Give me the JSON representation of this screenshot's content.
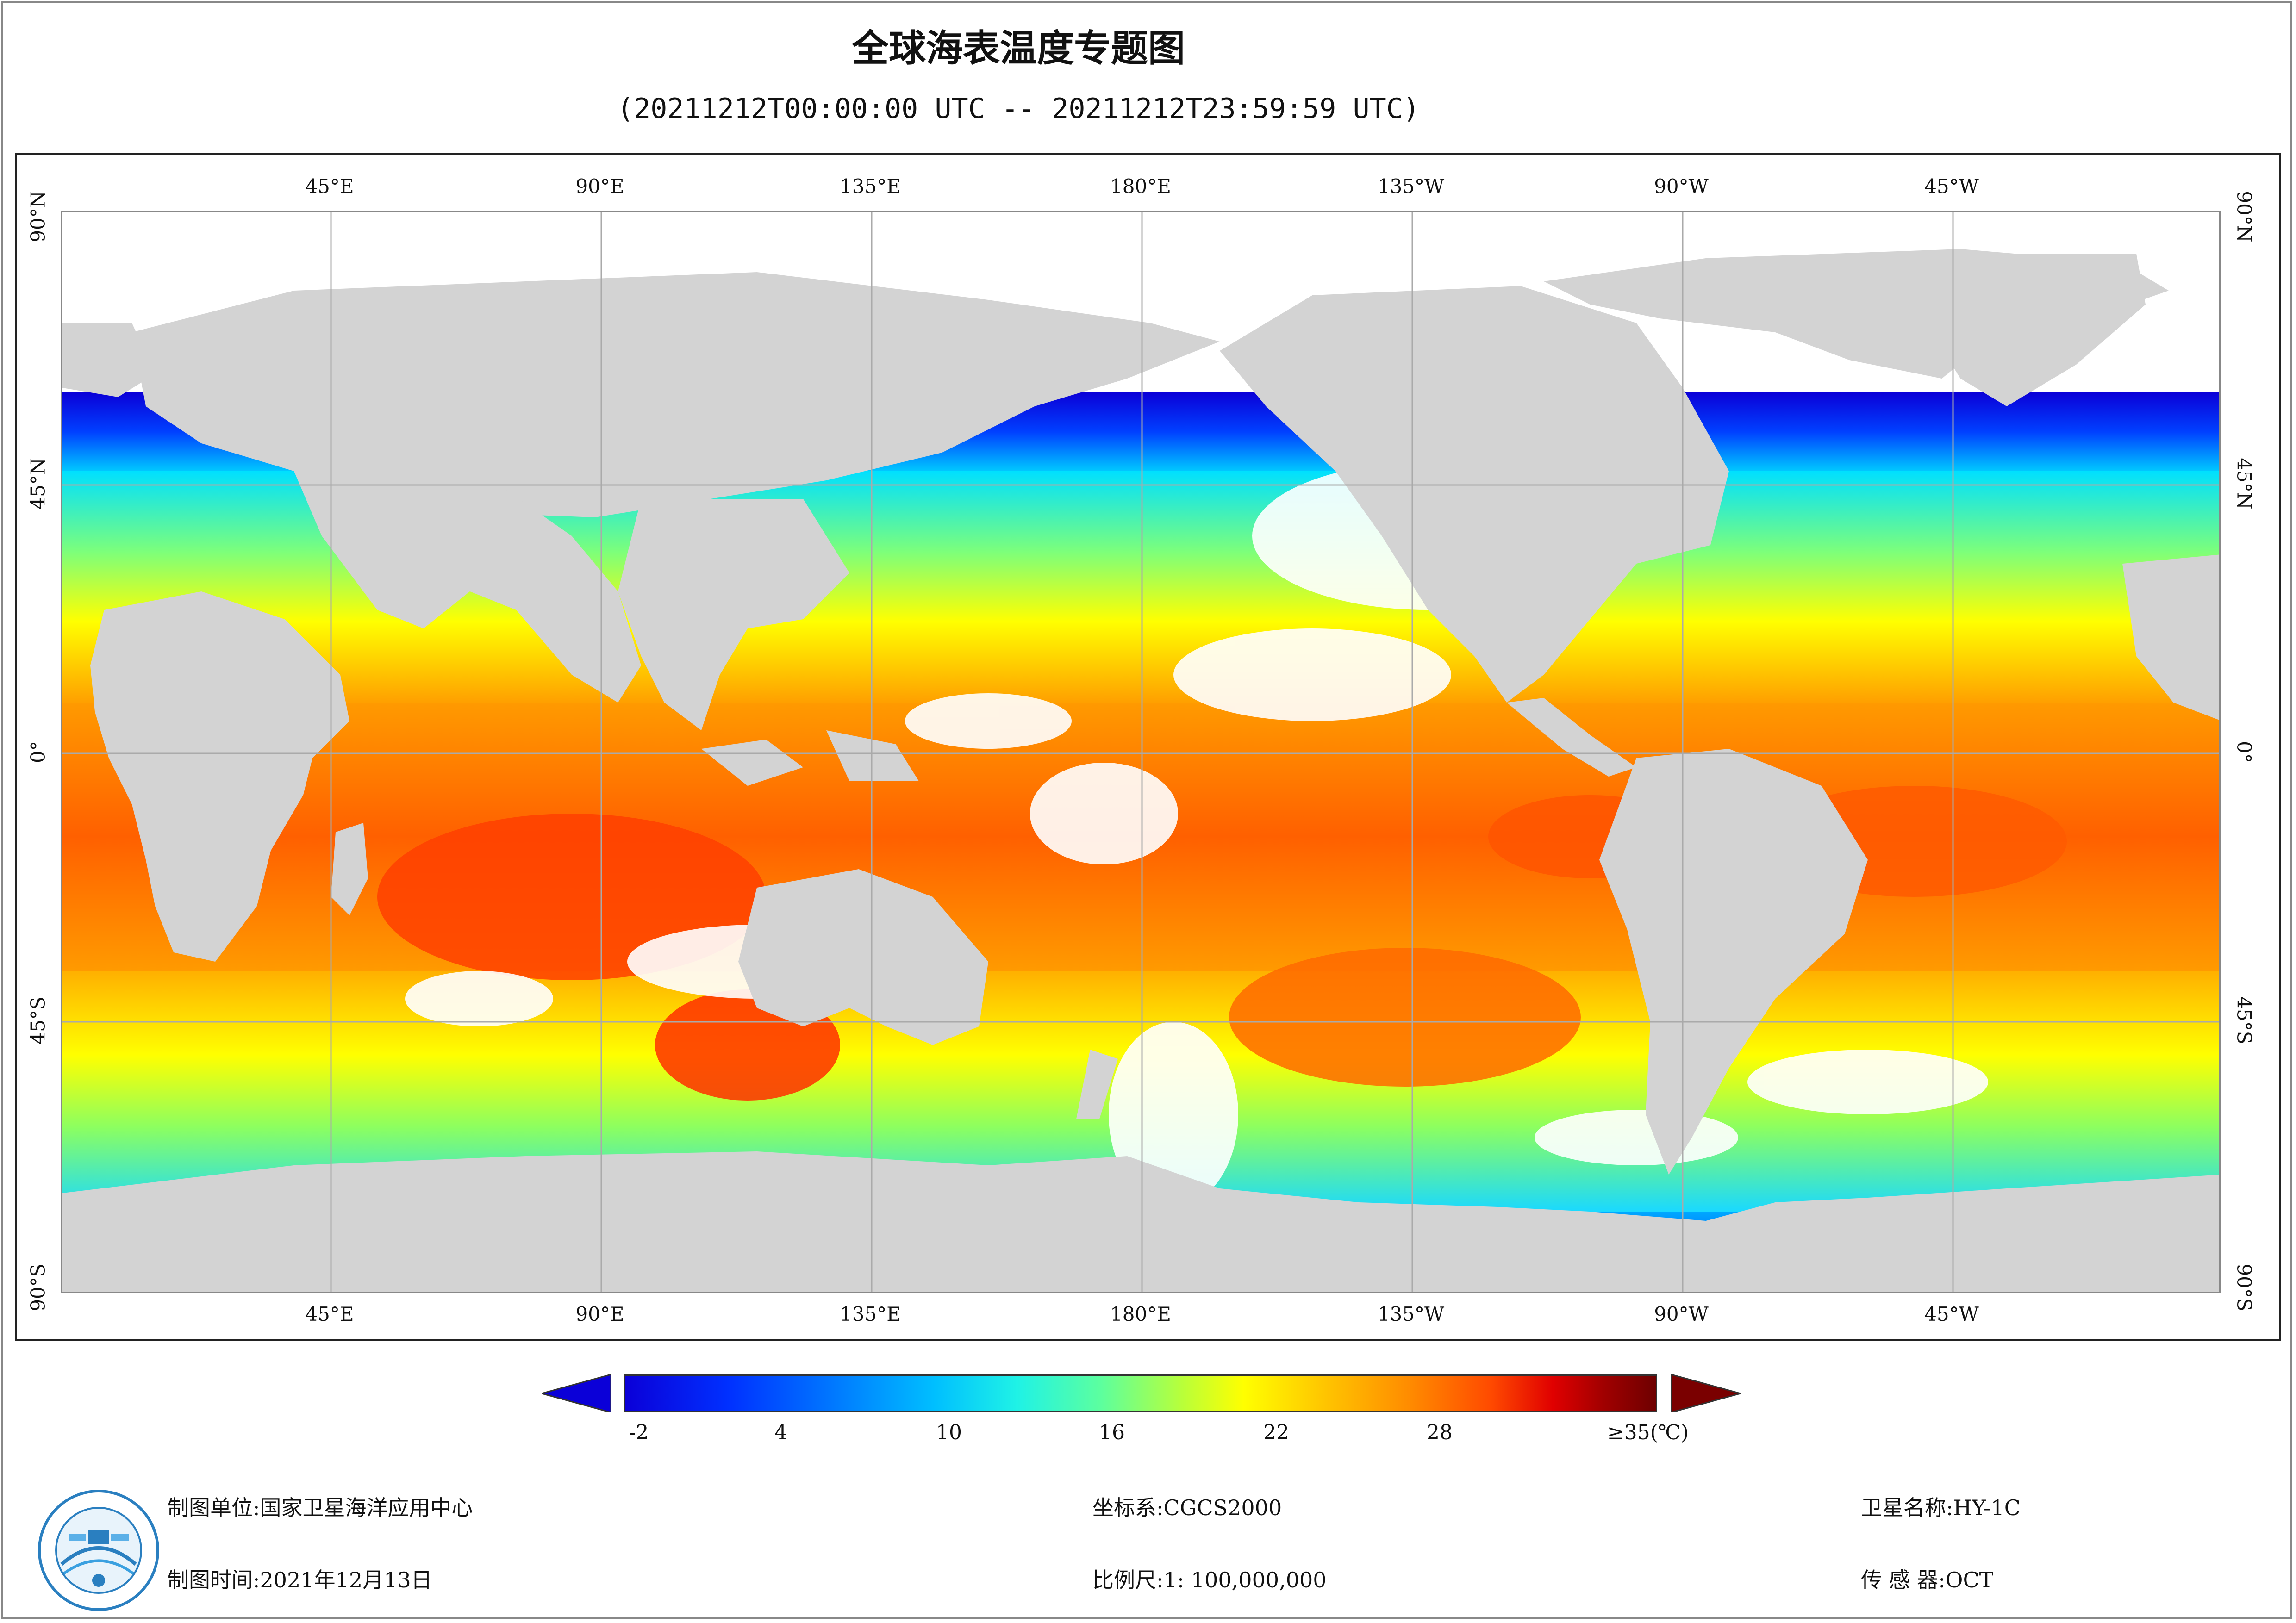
{
  "header": {
    "title": "全球海表温度专题图",
    "subtitle": "(20211212T00:00:00 UTC -- 20211212T23:59:59 UTC)"
  },
  "map": {
    "lon_labels_top": [
      "45°E",
      "90°E",
      "135°E",
      "180°E",
      "135°W",
      "90°W",
      "45°W"
    ],
    "lon_labels_bottom": [
      "45°E",
      "90°E",
      "135°E",
      "180°E",
      "135°W",
      "90°W",
      "45°W"
    ],
    "lat_labels_left": [
      "90°N",
      "45°N",
      "0°",
      "45°S",
      "90°S"
    ],
    "lat_labels_right": [
      "90°N",
      "45°N",
      "0°",
      "45°S",
      "90°S"
    ],
    "land_color": "#d3d3d3",
    "grid_color": "#aaaaaa",
    "no_data_color": "#ffffff"
  },
  "colorbar": {
    "ticks": [
      "-2",
      "4",
      "10",
      "16",
      "22",
      "28",
      "≥35(℃)"
    ],
    "tick_values": [
      -2,
      4,
      10,
      16,
      22,
      28,
      35
    ],
    "min": -3,
    "max": 35,
    "arrow_low_color": "#0b00d8",
    "arrow_high_color": "#7a0000"
  },
  "footer": {
    "producer_label": "制图单位:",
    "producer_value": "国家卫星海洋应用中心",
    "date_label": "制图时间:",
    "date_value": "2021年12月13日",
    "crs_label": "坐标系:",
    "crs_value": "CGCS2000",
    "scale_label": "比例尺:",
    "scale_value": "1: 100,000,000",
    "satellite_label": "卫星名称:",
    "satellite_value": "HY-1C",
    "sensor_label": "传 感 器:",
    "sensor_value": "OCT"
  },
  "logo": {
    "name": "nsoas-logo-icon"
  }
}
